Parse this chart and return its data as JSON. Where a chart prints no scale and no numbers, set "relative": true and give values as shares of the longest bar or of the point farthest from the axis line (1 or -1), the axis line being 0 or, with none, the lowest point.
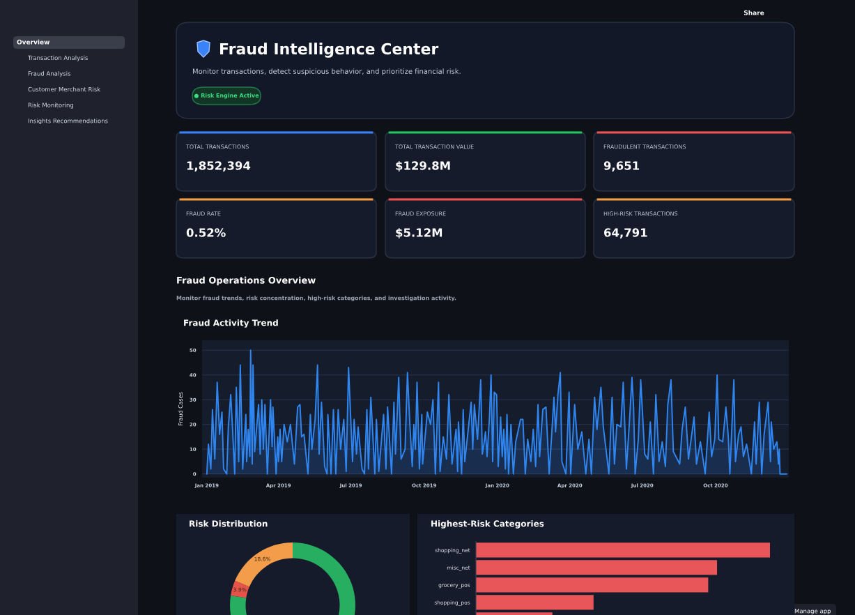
{
  "chart_data": [
    {
      "type": "other",
      "annotations": [
        "Overview",
        "Transaction Analysis",
        "Fraud Analysis",
        "Customer Merchant Risk",
        "Risk Monitoring",
        "Insights Recommendations",
        "Share",
        "Manage app"
      ]
    },
    {
      "type": "other",
      "title": "Fraud Intelligence Center",
      "subtitle": "Monitor transactions, detect suspicious behavior, and prioritize financial risk.",
      "annotations": [
        "● Risk Engine Active"
      ]
    },
    {
      "type": "other",
      "annotations": [
        "TOTAL TRANSACTIONS",
        "1,852,394",
        "TOTAL TRANSACTION VALUE",
        "$129.8M",
        "FRAUDULENT TRANSACTIONS",
        "9,651",
        "FRAUD RATE",
        "0.52%",
        "FRAUD EXPOSURE",
        "$5.12M",
        "HIGH-RISK TRANSACTIONS",
        "64,791"
      ],
      "colors": [
        "#3b82f6",
        "#22c55e",
        "#ef5350",
        "#f59e42",
        "#ef5350",
        "#f59e42"
      ]
    },
    {
      "type": "other",
      "title": "Fraud Operations Overview",
      "subtitle": "Monitor fraud trends, risk concentration, high-risk categories, and investigation activity."
    },
    {
      "type": "area",
      "title": "Fraud Activity Trend",
      "ylabel": "Fraud Cases",
      "color": "#2f86f0",
      "grid": "y",
      "xlim": [
        "2018-12-26",
        "2021-01-01"
      ],
      "ylim": [
        -1.5,
        54
      ],
      "yticks": [
        0,
        10,
        20,
        30,
        40,
        50
      ],
      "xticks": [
        {
          "value": "2019-01-01",
          "label": "Jan 2019"
        },
        {
          "value": "2019-04-01",
          "label": "Apr 2019"
        },
        {
          "value": "2019-07-01",
          "label": "Jul 2019"
        },
        {
          "value": "2019-10-01",
          "label": "Oct 2019"
        },
        {
          "value": "2020-01-01",
          "label": "Jan 2020"
        },
        {
          "value": "2020-04-01",
          "label": "Apr 2020"
        },
        {
          "value": "2020-07-01",
          "label": "Jul 2020"
        },
        {
          "value": "2020-10-01",
          "label": "Oct 2020"
        }
      ],
      "x": [
        "2019-01-01",
        "2019-01-03",
        "2019-01-06",
        "2019-01-08",
        "2019-01-11",
        "2019-01-14",
        "2019-01-17",
        "2019-01-20",
        "2019-01-22",
        "2019-01-26",
        "2019-01-28",
        "2019-01-31",
        "2019-02-02",
        "2019-02-05",
        "2019-02-07",
        "2019-02-10",
        "2019-02-12",
        "2019-02-15",
        "2019-02-19",
        "2019-02-20",
        "2019-02-22",
        "2019-02-24",
        "2019-02-25",
        "2019-02-27",
        "2019-02-28",
        "2019-03-02",
        "2019-03-07",
        "2019-03-09",
        "2019-03-11",
        "2019-03-13",
        "2019-03-15",
        "2019-03-18",
        "2019-03-22",
        "2019-03-24",
        "2019-03-25",
        "2019-03-29",
        "2019-03-31",
        "2019-04-01",
        "2019-04-03",
        "2019-04-05",
        "2019-04-08",
        "2019-04-12",
        "2019-04-16",
        "2019-04-21",
        "2019-04-25",
        "2019-04-28",
        "2019-04-30",
        "2019-05-03",
        "2019-05-08",
        "2019-05-11",
        "2019-05-13",
        "2019-05-17",
        "2019-05-20",
        "2019-05-22",
        "2019-05-25",
        "2019-05-29",
        "2019-06-01",
        "2019-06-02",
        "2019-06-06",
        "2019-06-09",
        "2019-06-12",
        "2019-06-15",
        "2019-06-18",
        "2019-06-22",
        "2019-06-25",
        "2019-06-28",
        "2019-07-03",
        "2019-07-05",
        "2019-07-08",
        "2019-07-10",
        "2019-07-15",
        "2019-07-18",
        "2019-07-21",
        "2019-07-23",
        "2019-07-26",
        "2019-07-31",
        "2019-08-02",
        "2019-08-05",
        "2019-08-11",
        "2019-08-14",
        "2019-08-16",
        "2019-08-21",
        "2019-08-24",
        "2019-08-26",
        "2019-08-30",
        "2019-09-02",
        "2019-09-07",
        "2019-09-10",
        "2019-09-13",
        "2019-09-16",
        "2019-09-18",
        "2019-09-20",
        "2019-09-22",
        "2019-09-25",
        "2019-09-28",
        "2019-09-29",
        "2019-10-05",
        "2019-10-09",
        "2019-10-12",
        "2019-10-15",
        "2019-10-19",
        "2019-10-21",
        "2019-10-25",
        "2019-10-29",
        "2019-11-01",
        "2019-11-05",
        "2019-11-10",
        "2019-11-12",
        "2019-11-13",
        "2019-11-17",
        "2019-11-19",
        "2019-11-21",
        "2019-11-29",
        "2019-12-01",
        "2019-12-03",
        "2019-12-07",
        "2019-12-11",
        "2019-12-13",
        "2019-12-15",
        "2019-12-17",
        "2019-12-19",
        "2019-12-22",
        "2019-12-24",
        "2019-12-26",
        "2019-12-28",
        "2019-12-31",
        "2020-01-02",
        "2020-01-05",
        "2020-01-07",
        "2020-01-09",
        "2020-01-11",
        "2020-01-13",
        "2020-01-15",
        "2020-01-18",
        "2020-01-21",
        "2020-01-24",
        "2020-01-30",
        "2020-02-02",
        "2020-02-05",
        "2020-02-08",
        "2020-02-12",
        "2020-02-15",
        "2020-02-18",
        "2020-02-21",
        "2020-02-23",
        "2020-02-27",
        "2020-03-02",
        "2020-03-06",
        "2020-03-09",
        "2020-03-12",
        "2020-03-14",
        "2020-03-17",
        "2020-03-20",
        "2020-03-22",
        "2020-03-27",
        "2020-03-31",
        "2020-04-02",
        "2020-04-07",
        "2020-04-11",
        "2020-04-16",
        "2020-04-21",
        "2020-04-25",
        "2020-04-28",
        "2020-05-02",
        "2020-05-05",
        "2020-05-10",
        "2020-05-13",
        "2020-05-16",
        "2020-05-20",
        "2020-05-24",
        "2020-05-27",
        "2020-05-30",
        "2020-06-04",
        "2020-06-07",
        "2020-06-11",
        "2020-06-15",
        "2020-06-18",
        "2020-06-20",
        "2020-06-22",
        "2020-06-26",
        "2020-06-29",
        "2020-07-04",
        "2020-07-08",
        "2020-07-11",
        "2020-07-15",
        "2020-07-18",
        "2020-07-22",
        "2020-07-26",
        "2020-07-30",
        "2020-08-02",
        "2020-08-06",
        "2020-08-09",
        "2020-08-17",
        "2020-08-20",
        "2020-08-24",
        "2020-08-28",
        "2020-09-04",
        "2020-09-07",
        "2020-09-12",
        "2020-09-18",
        "2020-09-23",
        "2020-09-26",
        "2020-09-30",
        "2020-10-03",
        "2020-10-05",
        "2020-10-10",
        "2020-10-14",
        "2020-10-17",
        "2020-10-19",
        "2020-10-24",
        "2020-10-26",
        "2020-10-30",
        "2020-11-02",
        "2020-11-05",
        "2020-11-09",
        "2020-11-15",
        "2020-11-19",
        "2020-11-21",
        "2020-11-25",
        "2020-11-28",
        "2020-12-01",
        "2020-12-06",
        "2020-12-09",
        "2020-12-10",
        "2020-12-13",
        "2020-12-17",
        "2020-12-19",
        "2020-12-20",
        "2020-12-21",
        "2020-12-29"
      ],
      "values": [
        0,
        12,
        2,
        26,
        6,
        37,
        16,
        25,
        2,
        0,
        19,
        32,
        20,
        0,
        35,
        5,
        44,
        2,
        24,
        5,
        18,
        7,
        50,
        4,
        44,
        9,
        28,
        8,
        30,
        10,
        28,
        0,
        30,
        11,
        27,
        0,
        15,
        5,
        18,
        5,
        20,
        13,
        20,
        4,
        27,
        28,
        15,
        16,
        0,
        24,
        10,
        22,
        44,
        8,
        29,
        3,
        0,
        24,
        0,
        26,
        0,
        26,
        10,
        22,
        1,
        43,
        5,
        22,
        8,
        19,
        2,
        0,
        26,
        2,
        31,
        0,
        22,
        1,
        24,
        2,
        27,
        0,
        29,
        8,
        39,
        6,
        10,
        41,
        20,
        3,
        20,
        10,
        37,
        2,
        24,
        4,
        25,
        20,
        30,
        0,
        37,
        1,
        15,
        6,
        32,
        4,
        18,
        1,
        21,
        0,
        26,
        5,
        29,
        10,
        28,
        14,
        38,
        8,
        12,
        17,
        7,
        23,
        40,
        5,
        33,
        32,
        3,
        23,
        7,
        18,
        2,
        24,
        0,
        20,
        0,
        13,
        22,
        22,
        0,
        14,
        5,
        18,
        3,
        28,
        7,
        26,
        27,
        0,
        15,
        31,
        17,
        32,
        41,
        5,
        0,
        33,
        0,
        28,
        10,
        17,
        0,
        14,
        0,
        31,
        18,
        35,
        19,
        11,
        0,
        31,
        4,
        20,
        19,
        37,
        2,
        22,
        39,
        27,
        0,
        14,
        38,
        8,
        6,
        21,
        0,
        32,
        5,
        13,
        3,
        28,
        38,
        9,
        4,
        18,
        27,
        6,
        23,
        4,
        13,
        0,
        25,
        7,
        14,
        40,
        14,
        13,
        27,
        15,
        0,
        38,
        5,
        16,
        19,
        7,
        12,
        0,
        21,
        4,
        29,
        0,
        16,
        29,
        5,
        21,
        10,
        13,
        4,
        10,
        0,
        0
      ]
    },
    {
      "type": "donut",
      "title": "Risk Distribution",
      "categories": [
        null,
        null,
        null
      ],
      "values": [
        77.5,
        3.9,
        18.6
      ],
      "colors": [
        "#27ae60",
        "#e5534b",
        "#f39c4a"
      ],
      "value_labels": [
        null,
        "3.9%",
        "18.6%"
      ]
    },
    {
      "type": "bar",
      "orientation": "horizontal",
      "relative": true,
      "title": "Highest-Risk Categories",
      "categories": [
        "shopping_net",
        "misc_net",
        "grocery_pos",
        "shopping_pos",
        null
      ],
      "values": [
        1,
        0.82,
        0.79,
        0.4,
        0.26
      ],
      "color": "#e8565a"
    }
  ]
}
